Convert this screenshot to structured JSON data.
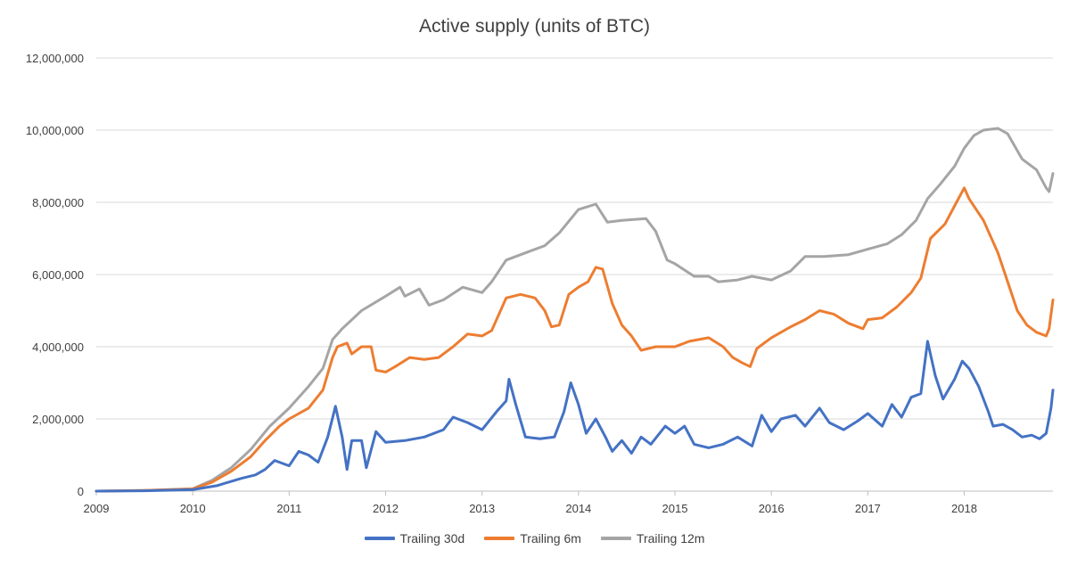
{
  "chart_data": {
    "type": "line",
    "title": "Active supply (units of BTC)",
    "xlabel": "",
    "ylabel": "",
    "ylim": [
      0,
      12000000
    ],
    "y_ticks": [
      0,
      2000000,
      4000000,
      6000000,
      8000000,
      10000000,
      12000000
    ],
    "y_tick_labels": [
      "0",
      "2,000,000",
      "4,000,000",
      "6,000,000",
      "8,000,000",
      "10,000,000",
      "12,000,000"
    ],
    "xlim": [
      2009,
      2018.92
    ],
    "x_ticks": [
      2009,
      2010,
      2011,
      2012,
      2013,
      2014,
      2015,
      2016,
      2017,
      2018
    ],
    "x_tick_labels": [
      "2009",
      "2010",
      "2011",
      "2012",
      "2013",
      "2014",
      "2015",
      "2016",
      "2017",
      "2018"
    ],
    "grid": true,
    "legend_position": "bottom",
    "series": [
      {
        "name": "Trailing 30d",
        "color": "#4472C4",
        "points": [
          [
            2009,
            0
          ],
          [
            2009.5,
            10000
          ],
          [
            2010,
            40000
          ],
          [
            2010.25,
            150000
          ],
          [
            2010.5,
            350000
          ],
          [
            2010.65,
            450000
          ],
          [
            2010.75,
            600000
          ],
          [
            2010.85,
            850000
          ],
          [
            2011,
            700000
          ],
          [
            2011.1,
            1100000
          ],
          [
            2011.2,
            1000000
          ],
          [
            2011.3,
            800000
          ],
          [
            2011.4,
            1500000
          ],
          [
            2011.48,
            2350000
          ],
          [
            2011.55,
            1500000
          ],
          [
            2011.6,
            600000
          ],
          [
            2011.65,
            1400000
          ],
          [
            2011.75,
            1400000
          ],
          [
            2011.8,
            650000
          ],
          [
            2011.9,
            1650000
          ],
          [
            2012,
            1350000
          ],
          [
            2012.2,
            1400000
          ],
          [
            2012.4,
            1500000
          ],
          [
            2012.6,
            1700000
          ],
          [
            2012.7,
            2050000
          ],
          [
            2012.85,
            1900000
          ],
          [
            2013,
            1700000
          ],
          [
            2013.15,
            2200000
          ],
          [
            2013.25,
            2500000
          ],
          [
            2013.28,
            3100000
          ],
          [
            2013.35,
            2400000
          ],
          [
            2013.45,
            1500000
          ],
          [
            2013.6,
            1450000
          ],
          [
            2013.75,
            1500000
          ],
          [
            2013.85,
            2200000
          ],
          [
            2013.92,
            3000000
          ],
          [
            2014,
            2400000
          ],
          [
            2014.08,
            1600000
          ],
          [
            2014.18,
            2000000
          ],
          [
            2014.28,
            1500000
          ],
          [
            2014.35,
            1100000
          ],
          [
            2014.45,
            1400000
          ],
          [
            2014.55,
            1050000
          ],
          [
            2014.65,
            1500000
          ],
          [
            2014.75,
            1300000
          ],
          [
            2014.9,
            1800000
          ],
          [
            2015,
            1600000
          ],
          [
            2015.1,
            1800000
          ],
          [
            2015.2,
            1300000
          ],
          [
            2015.35,
            1200000
          ],
          [
            2015.5,
            1300000
          ],
          [
            2015.65,
            1500000
          ],
          [
            2015.8,
            1250000
          ],
          [
            2015.9,
            2100000
          ],
          [
            2016,
            1650000
          ],
          [
            2016.1,
            2000000
          ],
          [
            2016.25,
            2100000
          ],
          [
            2016.35,
            1800000
          ],
          [
            2016.5,
            2300000
          ],
          [
            2016.6,
            1900000
          ],
          [
            2016.75,
            1700000
          ],
          [
            2016.9,
            1950000
          ],
          [
            2017,
            2150000
          ],
          [
            2017.15,
            1800000
          ],
          [
            2017.25,
            2400000
          ],
          [
            2017.35,
            2050000
          ],
          [
            2017.45,
            2600000
          ],
          [
            2017.55,
            2700000
          ],
          [
            2017.62,
            4150000
          ],
          [
            2017.7,
            3200000
          ],
          [
            2017.78,
            2550000
          ],
          [
            2017.9,
            3100000
          ],
          [
            2017.98,
            3600000
          ],
          [
            2018.05,
            3400000
          ],
          [
            2018.15,
            2900000
          ],
          [
            2018.25,
            2200000
          ],
          [
            2018.3,
            1800000
          ],
          [
            2018.4,
            1850000
          ],
          [
            2018.5,
            1700000
          ],
          [
            2018.6,
            1500000
          ],
          [
            2018.7,
            1550000
          ],
          [
            2018.78,
            1450000
          ],
          [
            2018.85,
            1600000
          ],
          [
            2018.9,
            2300000
          ],
          [
            2018.92,
            2800000
          ]
        ]
      },
      {
        "name": "Trailing 6m",
        "color": "#ED7D31",
        "points": [
          [
            2009,
            0
          ],
          [
            2009.5,
            20000
          ],
          [
            2010,
            60000
          ],
          [
            2010.2,
            250000
          ],
          [
            2010.4,
            550000
          ],
          [
            2010.6,
            950000
          ],
          [
            2010.75,
            1400000
          ],
          [
            2010.9,
            1800000
          ],
          [
            2011,
            2000000
          ],
          [
            2011.2,
            2300000
          ],
          [
            2011.35,
            2800000
          ],
          [
            2011.45,
            3700000
          ],
          [
            2011.5,
            4000000
          ],
          [
            2011.6,
            4100000
          ],
          [
            2011.65,
            3800000
          ],
          [
            2011.75,
            4000000
          ],
          [
            2011.85,
            4000000
          ],
          [
            2011.9,
            3350000
          ],
          [
            2012,
            3300000
          ],
          [
            2012.1,
            3450000
          ],
          [
            2012.25,
            3700000
          ],
          [
            2012.4,
            3650000
          ],
          [
            2012.55,
            3700000
          ],
          [
            2012.7,
            4000000
          ],
          [
            2012.85,
            4350000
          ],
          [
            2013,
            4300000
          ],
          [
            2013.1,
            4450000
          ],
          [
            2013.25,
            5350000
          ],
          [
            2013.4,
            5450000
          ],
          [
            2013.55,
            5350000
          ],
          [
            2013.65,
            5000000
          ],
          [
            2013.72,
            4550000
          ],
          [
            2013.8,
            4600000
          ],
          [
            2013.9,
            5450000
          ],
          [
            2014,
            5650000
          ],
          [
            2014.1,
            5800000
          ],
          [
            2014.18,
            6200000
          ],
          [
            2014.25,
            6150000
          ],
          [
            2014.35,
            5200000
          ],
          [
            2014.45,
            4600000
          ],
          [
            2014.55,
            4300000
          ],
          [
            2014.65,
            3900000
          ],
          [
            2014.8,
            4000000
          ],
          [
            2015,
            4000000
          ],
          [
            2015.15,
            4150000
          ],
          [
            2015.35,
            4250000
          ],
          [
            2015.5,
            4000000
          ],
          [
            2015.6,
            3700000
          ],
          [
            2015.7,
            3550000
          ],
          [
            2015.78,
            3450000
          ],
          [
            2015.85,
            3950000
          ],
          [
            2016,
            4250000
          ],
          [
            2016.2,
            4550000
          ],
          [
            2016.35,
            4750000
          ],
          [
            2016.5,
            5000000
          ],
          [
            2016.65,
            4900000
          ],
          [
            2016.8,
            4650000
          ],
          [
            2016.95,
            4500000
          ],
          [
            2017,
            4750000
          ],
          [
            2017.15,
            4800000
          ],
          [
            2017.3,
            5100000
          ],
          [
            2017.45,
            5500000
          ],
          [
            2017.55,
            5900000
          ],
          [
            2017.65,
            7000000
          ],
          [
            2017.8,
            7400000
          ],
          [
            2017.92,
            8000000
          ],
          [
            2018,
            8400000
          ],
          [
            2018.05,
            8100000
          ],
          [
            2018.2,
            7500000
          ],
          [
            2018.35,
            6600000
          ],
          [
            2018.45,
            5800000
          ],
          [
            2018.55,
            5000000
          ],
          [
            2018.65,
            4600000
          ],
          [
            2018.75,
            4400000
          ],
          [
            2018.85,
            4300000
          ],
          [
            2018.88,
            4500000
          ],
          [
            2018.92,
            5300000
          ]
        ]
      },
      {
        "name": "Trailing 12m",
        "color": "#A5A5A5",
        "points": [
          [
            2009,
            0
          ],
          [
            2009.5,
            20000
          ],
          [
            2010,
            70000
          ],
          [
            2010.2,
            300000
          ],
          [
            2010.4,
            650000
          ],
          [
            2010.6,
            1150000
          ],
          [
            2010.8,
            1800000
          ],
          [
            2011,
            2300000
          ],
          [
            2011.2,
            2900000
          ],
          [
            2011.35,
            3400000
          ],
          [
            2011.45,
            4200000
          ],
          [
            2011.55,
            4500000
          ],
          [
            2011.75,
            5000000
          ],
          [
            2012,
            5400000
          ],
          [
            2012.15,
            5650000
          ],
          [
            2012.2,
            5400000
          ],
          [
            2012.35,
            5600000
          ],
          [
            2012.45,
            5150000
          ],
          [
            2012.6,
            5300000
          ],
          [
            2012.8,
            5650000
          ],
          [
            2013,
            5500000
          ],
          [
            2013.1,
            5800000
          ],
          [
            2013.25,
            6400000
          ],
          [
            2013.45,
            6600000
          ],
          [
            2013.65,
            6800000
          ],
          [
            2013.8,
            7150000
          ],
          [
            2014,
            7800000
          ],
          [
            2014.18,
            7950000
          ],
          [
            2014.3,
            7450000
          ],
          [
            2014.45,
            7500000
          ],
          [
            2014.7,
            7550000
          ],
          [
            2014.8,
            7200000
          ],
          [
            2014.92,
            6400000
          ],
          [
            2015,
            6300000
          ],
          [
            2015.2,
            5950000
          ],
          [
            2015.35,
            5950000
          ],
          [
            2015.45,
            5800000
          ],
          [
            2015.65,
            5850000
          ],
          [
            2015.8,
            5950000
          ],
          [
            2016,
            5850000
          ],
          [
            2016.2,
            6100000
          ],
          [
            2016.35,
            6500000
          ],
          [
            2016.55,
            6500000
          ],
          [
            2016.8,
            6550000
          ],
          [
            2017,
            6700000
          ],
          [
            2017.2,
            6850000
          ],
          [
            2017.35,
            7100000
          ],
          [
            2017.5,
            7500000
          ],
          [
            2017.62,
            8100000
          ],
          [
            2017.75,
            8500000
          ],
          [
            2017.9,
            9000000
          ],
          [
            2018,
            9500000
          ],
          [
            2018.1,
            9850000
          ],
          [
            2018.2,
            10000000
          ],
          [
            2018.35,
            10050000
          ],
          [
            2018.45,
            9900000
          ],
          [
            2018.6,
            9200000
          ],
          [
            2018.75,
            8900000
          ],
          [
            2018.85,
            8400000
          ],
          [
            2018.88,
            8300000
          ],
          [
            2018.92,
            8800000
          ]
        ]
      }
    ]
  }
}
